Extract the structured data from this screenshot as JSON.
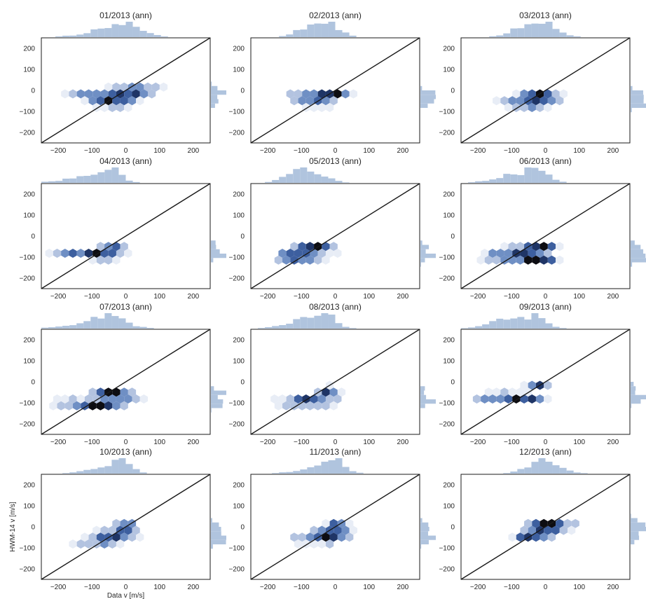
{
  "figure": {
    "xlabel": "Data v [m/s]",
    "ylabel": "HWM-14 v [m/s]"
  },
  "colors": {
    "hist": "#b0c4de",
    "identity_line": "#1a1a1a",
    "hex_scale": [
      "#e8edf6",
      "#b3c3e0",
      "#6f8fc4",
      "#3d5f9f",
      "#1f3566",
      "#0d0d12"
    ]
  },
  "chart_data": [
    {
      "type": "heatmap",
      "title": "01/2013 (ann)",
      "xlim": [
        -250,
        250
      ],
      "ylim": [
        -250,
        250
      ],
      "xticks": [
        -200,
        -100,
        0,
        100,
        200
      ],
      "yticks": [
        -200,
        -100,
        0,
        100,
        200
      ],
      "identity_line": true,
      "density_centers": [
        {
          "x": -40,
          "y": -55,
          "sx": 45,
          "sy": 15,
          "w": 1.0
        },
        {
          "x": 10,
          "y": -10,
          "sx": 40,
          "sy": 15,
          "w": 0.9
        },
        {
          "x": -100,
          "y": -10,
          "sx": 55,
          "sy": 12,
          "w": 0.5
        },
        {
          "x": 50,
          "y": 10,
          "sx": 40,
          "sy": 12,
          "w": 0.4
        }
      ]
    },
    {
      "type": "heatmap",
      "title": "02/2013 (ann)",
      "xlim": [
        -250,
        250
      ],
      "ylim": [
        -250,
        250
      ],
      "xticks": [
        -200,
        -100,
        0,
        100,
        200
      ],
      "yticks": [
        -200,
        -100,
        0,
        100,
        200
      ],
      "identity_line": true,
      "density_centers": [
        {
          "x": -10,
          "y": -20,
          "sx": 30,
          "sy": 12,
          "w": 1.0
        },
        {
          "x": -60,
          "y": -60,
          "sx": 40,
          "sy": 12,
          "w": 0.8
        },
        {
          "x": -80,
          "y": -20,
          "sx": 40,
          "sy": 15,
          "w": 0.4
        }
      ]
    },
    {
      "type": "heatmap",
      "title": "03/2013 (ann)",
      "xlim": [
        -250,
        250
      ],
      "ylim": [
        -250,
        250
      ],
      "xticks": [
        -200,
        -100,
        0,
        100,
        200
      ],
      "yticks": [
        -200,
        -100,
        0,
        100,
        200
      ],
      "identity_line": true,
      "density_centers": [
        {
          "x": -20,
          "y": -20,
          "sx": 35,
          "sy": 15,
          "w": 0.9
        },
        {
          "x": -60,
          "y": -60,
          "sx": 45,
          "sy": 15,
          "w": 0.7
        },
        {
          "x": 10,
          "y": -60,
          "sx": 45,
          "sy": 15,
          "w": 0.3
        }
      ]
    },
    {
      "type": "heatmap",
      "title": "04/2013 (ann)",
      "xlim": [
        -250,
        250
      ],
      "ylim": [
        -250,
        250
      ],
      "xticks": [
        -200,
        -100,
        0,
        100,
        200
      ],
      "yticks": [
        -200,
        -100,
        0,
        100,
        200
      ],
      "identity_line": true,
      "density_centers": [
        {
          "x": -40,
          "y": -40,
          "sx": 22,
          "sy": 10,
          "w": 1.1
        },
        {
          "x": -70,
          "y": -90,
          "sx": 45,
          "sy": 14,
          "w": 0.8
        },
        {
          "x": -150,
          "y": -80,
          "sx": 55,
          "sy": 12,
          "w": 0.35
        }
      ]
    },
    {
      "type": "heatmap",
      "title": "05/2013 (ann)",
      "xlim": [
        -250,
        250
      ],
      "ylim": [
        -250,
        250
      ],
      "xticks": [
        -200,
        -100,
        0,
        100,
        200
      ],
      "yticks": [
        -200,
        -100,
        0,
        100,
        200
      ],
      "identity_line": true,
      "density_centers": [
        {
          "x": -130,
          "y": -100,
          "sx": 25,
          "sy": 10,
          "w": 1.1
        },
        {
          "x": -60,
          "y": -50,
          "sx": 35,
          "sy": 12,
          "w": 0.8
        },
        {
          "x": -90,
          "y": -90,
          "sx": 50,
          "sy": 20,
          "w": 0.6
        }
      ]
    },
    {
      "type": "heatmap",
      "title": "06/2013 (ann)",
      "xlim": [
        -250,
        250
      ],
      "ylim": [
        -250,
        250
      ],
      "xticks": [
        -200,
        -100,
        0,
        100,
        200
      ],
      "yticks": [
        -200,
        -100,
        0,
        100,
        200
      ],
      "identity_line": true,
      "density_centers": [
        {
          "x": -10,
          "y": -45,
          "sx": 25,
          "sy": 10,
          "w": 1.1
        },
        {
          "x": -20,
          "y": -110,
          "sx": 30,
          "sy": 12,
          "w": 1.0
        },
        {
          "x": -70,
          "y": -80,
          "sx": 50,
          "sy": 22,
          "w": 0.8
        },
        {
          "x": -140,
          "y": -100,
          "sx": 50,
          "sy": 15,
          "w": 0.3
        }
      ]
    },
    {
      "type": "heatmap",
      "title": "07/2013 (ann)",
      "xlim": [
        -250,
        250
      ],
      "ylim": [
        -250,
        250
      ],
      "xticks": [
        -200,
        -100,
        0,
        100,
        200
      ],
      "yticks": [
        -200,
        -100,
        0,
        100,
        200
      ],
      "identity_line": true,
      "density_centers": [
        {
          "x": -50,
          "y": -50,
          "sx": 25,
          "sy": 10,
          "w": 1.1
        },
        {
          "x": -80,
          "y": -110,
          "sx": 40,
          "sy": 10,
          "w": 1.0
        },
        {
          "x": -150,
          "y": -100,
          "sx": 60,
          "sy": 12,
          "w": 0.5
        },
        {
          "x": -20,
          "y": -70,
          "sx": 45,
          "sy": 20,
          "w": 0.5
        }
      ]
    },
    {
      "type": "heatmap",
      "title": "08/2013 (ann)",
      "xlim": [
        -250,
        250
      ],
      "ylim": [
        -250,
        250
      ],
      "xticks": [
        -200,
        -100,
        0,
        100,
        200
      ],
      "yticks": [
        -200,
        -100,
        0,
        100,
        200
      ],
      "identity_line": true,
      "density_centers": [
        {
          "x": -20,
          "y": -40,
          "sx": 20,
          "sy": 12,
          "w": 1.0
        },
        {
          "x": -70,
          "y": -90,
          "sx": 50,
          "sy": 15,
          "w": 0.8
        },
        {
          "x": -130,
          "y": -100,
          "sx": 50,
          "sy": 10,
          "w": 0.3
        }
      ]
    },
    {
      "type": "heatmap",
      "title": "09/2013 (ann)",
      "xlim": [
        -250,
        250
      ],
      "ylim": [
        -250,
        250
      ],
      "xticks": [
        -200,
        -100,
        0,
        100,
        200
      ],
      "yticks": [
        -200,
        -100,
        0,
        100,
        200
      ],
      "identity_line": true,
      "density_centers": [
        {
          "x": -20,
          "y": -25,
          "sx": 22,
          "sy": 10,
          "w": 1.1
        },
        {
          "x": -80,
          "y": -80,
          "sx": 55,
          "sy": 15,
          "w": 0.75
        },
        {
          "x": -140,
          "y": -70,
          "sx": 50,
          "sy": 15,
          "w": 0.3
        }
      ]
    },
    {
      "type": "heatmap",
      "title": "10/2013 (ann)",
      "xlim": [
        -250,
        250
      ],
      "ylim": [
        -250,
        250
      ],
      "xticks": [
        -200,
        -100,
        0,
        100,
        200
      ],
      "yticks": [
        -200,
        -100,
        0,
        100,
        200
      ],
      "identity_line": true,
      "density_centers": [
        {
          "x": 0,
          "y": 0,
          "sx": 20,
          "sy": 15,
          "w": 1.1
        },
        {
          "x": -40,
          "y": -45,
          "sx": 40,
          "sy": 18,
          "w": 0.8
        },
        {
          "x": -100,
          "y": -75,
          "sx": 50,
          "sy": 12,
          "w": 0.3
        }
      ]
    },
    {
      "type": "heatmap",
      "title": "11/2013 (ann)",
      "xlim": [
        -250,
        250
      ],
      "ylim": [
        -250,
        250
      ],
      "xticks": [
        -200,
        -100,
        0,
        100,
        200
      ],
      "yticks": [
        -200,
        -100,
        0,
        100,
        200
      ],
      "identity_line": true,
      "density_centers": [
        {
          "x": 5,
          "y": 5,
          "sx": 18,
          "sy": 15,
          "w": 1.1
        },
        {
          "x": -20,
          "y": -40,
          "sx": 40,
          "sy": 22,
          "w": 0.7
        },
        {
          "x": -80,
          "y": -60,
          "sx": 55,
          "sy": 15,
          "w": 0.3
        }
      ]
    },
    {
      "type": "heatmap",
      "title": "12/2013 (ann)",
      "xlim": [
        -250,
        250
      ],
      "ylim": [
        -250,
        250
      ],
      "xticks": [
        -200,
        -100,
        0,
        100,
        200
      ],
      "yticks": [
        -200,
        -100,
        0,
        100,
        200
      ],
      "identity_line": true,
      "density_centers": [
        {
          "x": 0,
          "y": 0,
          "sx": 35,
          "sy": 20,
          "w": 1.1
        },
        {
          "x": -40,
          "y": -50,
          "sx": 35,
          "sy": 15,
          "w": 0.8
        },
        {
          "x": 40,
          "y": 10,
          "sx": 40,
          "sy": 15,
          "w": 0.4
        }
      ]
    }
  ]
}
